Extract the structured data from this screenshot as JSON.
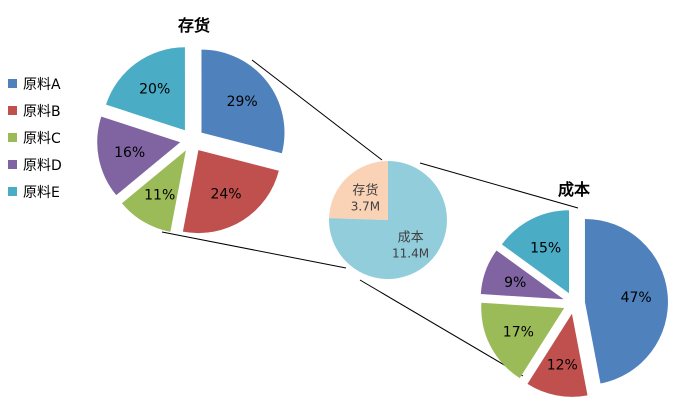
{
  "colors": {
    "series": [
      "#4F81BD",
      "#C0504D",
      "#9BBB59",
      "#8064A2",
      "#4BACC6"
    ],
    "center_inventory": "#FAD3B6",
    "center_cost": "#92CDDC",
    "connector": "#000000"
  },
  "legend": [
    "原料A",
    "原料B",
    "原料C",
    "原料D",
    "原料E"
  ],
  "chart_data": [
    {
      "type": "pie",
      "title": "存货",
      "categories": [
        "原料A",
        "原料B",
        "原料C",
        "原料D",
        "原料E"
      ],
      "values": [
        29,
        24,
        11,
        16,
        20
      ],
      "labels": [
        "29%",
        "24%",
        "11%",
        "16%",
        "20%"
      ],
      "exploded": true
    },
    {
      "type": "pie",
      "title": "",
      "categories": [
        "存货",
        "成本"
      ],
      "values": [
        3.7,
        11.4
      ],
      "labels": [
        {
          "name": "存货",
          "value": "3.7M"
        },
        {
          "name": "成本",
          "value": "11.4M"
        }
      ]
    },
    {
      "type": "pie",
      "title": "成本",
      "categories": [
        "原料A",
        "原料B",
        "原料C",
        "原料D",
        "原料E"
      ],
      "values": [
        47,
        12,
        17,
        9,
        15
      ],
      "labels": [
        "47%",
        "12%",
        "17%",
        "9%",
        "15%"
      ],
      "exploded": true
    }
  ]
}
